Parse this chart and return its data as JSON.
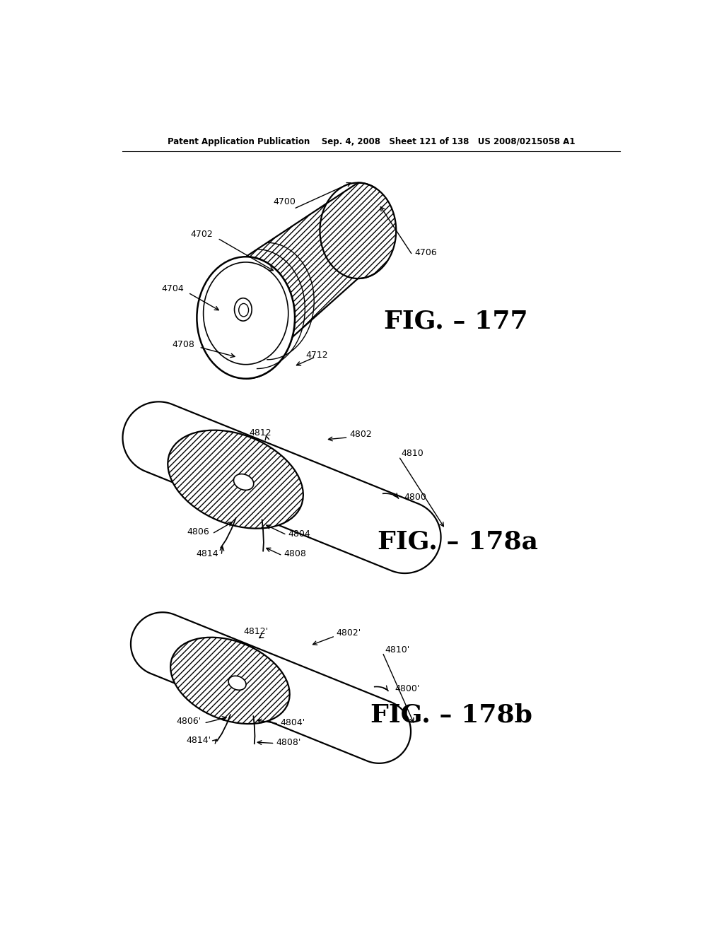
{
  "header": "Patent Application Publication    Sep. 4, 2008   Sheet 121 of 138   US 2008/0215058 A1",
  "fig177_label": "FIG. – 177",
  "fig178a_label": "FIG. – 178a",
  "fig178b_label": "FIG. – 178b",
  "bg": "#ffffff",
  "lc": "#000000",
  "lfs": 9,
  "hfs": 8.5,
  "figfs": 26
}
